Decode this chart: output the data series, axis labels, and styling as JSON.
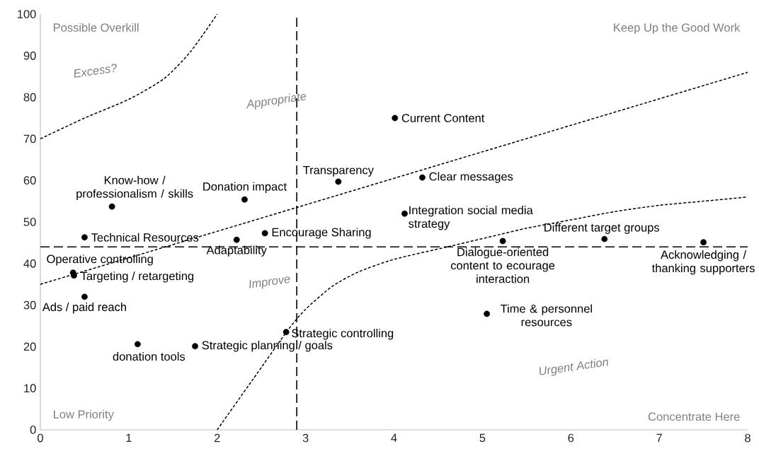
{
  "chart_data": {
    "type": "scatter",
    "xlim": [
      0,
      8
    ],
    "ylim": [
      0,
      100
    ],
    "xticks": [
      0,
      1,
      2,
      3,
      4,
      5,
      6,
      7,
      8
    ],
    "yticks": [
      0,
      10,
      20,
      30,
      40,
      50,
      60,
      70,
      80,
      90,
      100
    ],
    "marker": "circle",
    "series": [
      {
        "name": "Current Content",
        "color": "#000000",
        "x": [
          4.01
        ],
        "values": [
          75.0
        ]
      },
      {
        "name": "Clear messages",
        "color": "#000000",
        "x": [
          4.32
        ],
        "values": [
          60.7
        ]
      },
      {
        "name": "Transparency",
        "color": "#000000",
        "x": [
          3.37
        ],
        "values": [
          59.7
        ]
      },
      {
        "name": "Integration social media strategy",
        "color": "#000000",
        "x": [
          4.12
        ],
        "values": [
          52.0
        ]
      },
      {
        "name": "Donation impact",
        "color": "#000000",
        "x": [
          2.31
        ],
        "values": [
          55.4
        ]
      },
      {
        "name": "Know-how / professionalism / skills",
        "color": "#000000",
        "x": [
          0.81
        ],
        "values": [
          53.7
        ]
      },
      {
        "name": "Technical Resources",
        "color": "#000000",
        "x": [
          0.5
        ],
        "values": [
          46.3
        ]
      },
      {
        "name": "Adaptability",
        "color": "#000000",
        "x": [
          2.22
        ],
        "values": [
          45.7
        ]
      },
      {
        "name": "Encourage Sharing",
        "color": "#000000",
        "x": [
          2.54
        ],
        "values": [
          47.3
        ]
      },
      {
        "name": "Dialogue-oriented content to ecourage interaction",
        "color": "#000000",
        "x": [
          5.23
        ],
        "values": [
          45.4
        ]
      },
      {
        "name": "Different target groups",
        "color": "#000000",
        "x": [
          6.38
        ],
        "values": [
          45.9
        ]
      },
      {
        "name": "Acknowledging / thanking supporters",
        "color": "#000000",
        "x": [
          7.5
        ],
        "values": [
          45.1
        ]
      },
      {
        "name": "Operative controlling",
        "color": "#000000",
        "x": [
          0.37
        ],
        "values": [
          37.8
        ]
      },
      {
        "name": "Targeting / retargeting",
        "color": "#000000",
        "x": [
          0.38
        ],
        "values": [
          37.1
        ]
      },
      {
        "name": "Ads / paid reach",
        "color": "#000000",
        "x": [
          0.5
        ],
        "values": [
          32.0
        ]
      },
      {
        "name": "donation tools",
        "color": "#000000",
        "x": [
          1.1
        ],
        "values": [
          20.6
        ]
      },
      {
        "name": "Strategic planning / goals",
        "color": "#000000",
        "x": [
          1.75
        ],
        "values": [
          20.1
        ]
      },
      {
        "name": "Strategic controlling",
        "color": "#000000",
        "x": [
          2.78
        ],
        "values": [
          23.5
        ]
      },
      {
        "name": "Time & personnel resources",
        "color": "#000000",
        "x": [
          5.05
        ],
        "values": [
          27.9
        ]
      },
      {
        "type": "line",
        "marker": "none",
        "line_style": "dashed",
        "color": "#000000",
        "x": [
          0,
          0.5,
          1.0,
          1.4,
          1.7,
          2.0
        ],
        "values": [
          70,
          75,
          79.5,
          84.5,
          91,
          100
        ]
      },
      {
        "type": "line",
        "marker": "none",
        "line_style": "dashed",
        "color": "#000000",
        "x": [
          0,
          8
        ],
        "values": [
          35,
          86
        ]
      },
      {
        "type": "line",
        "marker": "none",
        "line_style": "dashed",
        "color": "#000000",
        "x": [
          2.0,
          2.4,
          2.8,
          3.0,
          3.3,
          3.6,
          4.0,
          4.6,
          5.2,
          5.5,
          6.0,
          6.5,
          7.0,
          7.5,
          8.0
        ],
        "values": [
          0,
          12,
          24,
          29,
          34.5,
          38,
          41,
          44,
          47,
          48.5,
          50.5,
          52.5,
          54,
          55,
          56
        ]
      }
    ],
    "ref_lines": [
      {
        "axis": "x",
        "value": 2.9,
        "line_style": "dashed",
        "color": "#000000"
      },
      {
        "axis": "y",
        "value": 44,
        "line_style": "dashed",
        "color": "#000000"
      }
    ],
    "annotations": [
      "Possible Overkill",
      "Keep Up the Good Work",
      "Low Priority",
      "Concentrate Here",
      "Excess?",
      "Appropriate",
      "Improve",
      "Urgent Action"
    ]
  }
}
